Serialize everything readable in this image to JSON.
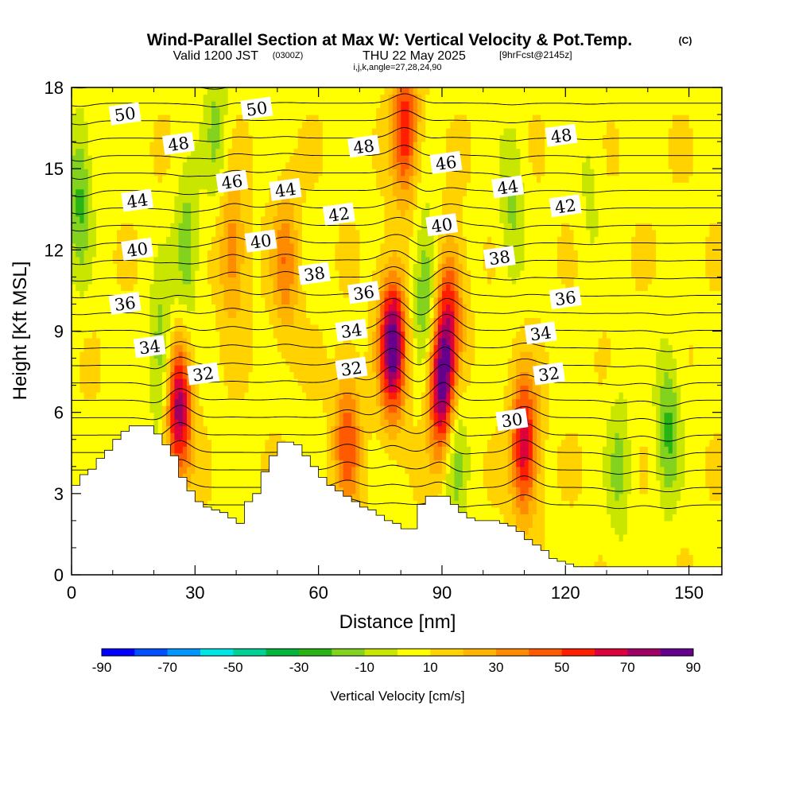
{
  "chart_data": {
    "type": "heatmap",
    "title": "Wind-Parallel Section at Max W: Vertical Velocity & Pot.Temp.",
    "title_mark": "(C)",
    "subtitle_main": "Valid 1200 JST",
    "subtitle_utc": "(0300Z)",
    "subtitle_date": "THU 22 May 2025",
    "subtitle_run": "[9hrFcst@2145z]",
    "subtitle_ijk": "i,j,k,angle=27,28,24,90",
    "xlabel": "Distance [nm]",
    "ylabel": "Height [Kft MSL]",
    "xlim": [
      0,
      158
    ],
    "ylim": [
      0,
      18
    ],
    "x_ticks": [
      "0",
      "30",
      "60",
      "90",
      "120",
      "150"
    ],
    "x_tick_values": [
      0,
      30,
      60,
      90,
      120,
      150
    ],
    "y_ticks": [
      "0",
      "3",
      "6",
      "9",
      "12",
      "15",
      "18"
    ],
    "y_tick_values": [
      0,
      3,
      6,
      9,
      12,
      15,
      18
    ],
    "colorbar": {
      "label": "Vertical Velocity [cm/s]",
      "range": [
        -90,
        90
      ],
      "step": 10,
      "tick_labels": [
        "-90",
        "-70",
        "-50",
        "-30",
        "-10",
        "10",
        "30",
        "50",
        "70",
        "90"
      ],
      "tick_values": [
        -90,
        -70,
        -50,
        -30,
        -10,
        10,
        30,
        50,
        70,
        90
      ],
      "colors": [
        "#0000ff",
        "#0050ff",
        "#0096ff",
        "#00e6e6",
        "#00d296",
        "#00b43c",
        "#28b414",
        "#82d21e",
        "#c8e600",
        "#ffff00",
        "#ffd200",
        "#ffb400",
        "#ff8c00",
        "#ff5a00",
        "#ff1e00",
        "#dc003c",
        "#a00064",
        "#64008c"
      ]
    },
    "terrain_profile": {
      "x": [
        0,
        2,
        4,
        6,
        8,
        10,
        12,
        14,
        16,
        18,
        20,
        22,
        24,
        26,
        28,
        30,
        32,
        34,
        36,
        38,
        40,
        42,
        44,
        46,
        48,
        50,
        52,
        54,
        56,
        58,
        60,
        62,
        64,
        66,
        68,
        70,
        72,
        74,
        76,
        78,
        80,
        82,
        84,
        86,
        88,
        90,
        92,
        94,
        96,
        98,
        100,
        102,
        104,
        106,
        108,
        110,
        112,
        114,
        116,
        118,
        120,
        122,
        124,
        126,
        128,
        130,
        140,
        150,
        158
      ],
      "height": [
        3.3,
        3.7,
        3.9,
        4.3,
        4.6,
        5.0,
        5.3,
        5.5,
        5.5,
        5.5,
        5.2,
        4.8,
        4.4,
        3.6,
        3.1,
        2.7,
        2.5,
        2.4,
        2.3,
        2.1,
        1.9,
        2.7,
        3.0,
        3.8,
        4.4,
        4.9,
        4.9,
        4.8,
        4.4,
        4.0,
        3.6,
        3.3,
        3.1,
        2.9,
        2.7,
        2.5,
        2.4,
        2.2,
        2.0,
        1.9,
        1.7,
        1.7,
        2.6,
        2.9,
        2.9,
        2.9,
        2.6,
        2.3,
        2.1,
        2.0,
        2.0,
        2.0,
        1.9,
        1.8,
        1.6,
        1.3,
        1.1,
        0.9,
        0.6,
        0.5,
        0.4,
        0.3,
        0.3,
        0.3,
        0.3,
        0.3,
        0.3,
        0.3,
        0.3
      ]
    },
    "updraft_cores": [
      {
        "x": 26,
        "z": 6.2,
        "w": 70
      },
      {
        "x": 67,
        "z": 5.0,
        "w": 40
      },
      {
        "x": 78,
        "z": 8.5,
        "w": 80
      },
      {
        "x": 90,
        "z": 7.0,
        "w": 80
      },
      {
        "x": 92,
        "z": 10.0,
        "w": 40
      },
      {
        "x": 110,
        "z": 4.8,
        "w": 60
      },
      {
        "x": 52,
        "z": 11.5,
        "w": 30
      },
      {
        "x": 81,
        "z": 16.5,
        "w": 50
      },
      {
        "x": 39,
        "z": 12.0,
        "w": 30
      }
    ],
    "downdraft_cores": [
      {
        "x": 2,
        "z": 14,
        "w": -30
      },
      {
        "x": 22,
        "z": 8.0,
        "w": -30
      },
      {
        "x": 28,
        "z": 12.0,
        "w": -25
      },
      {
        "x": 35,
        "z": 16.5,
        "w": -20
      },
      {
        "x": 86,
        "z": 10.5,
        "w": -30
      },
      {
        "x": 93,
        "z": 4.5,
        "w": -25
      },
      {
        "x": 107,
        "z": 13.5,
        "w": -20
      },
      {
        "x": 133,
        "z": 4.0,
        "w": -20
      },
      {
        "x": 145,
        "z": 5.5,
        "w": -30
      },
      {
        "x": 126,
        "z": 14.0,
        "w": -10
      }
    ],
    "isentrope_labels": [
      {
        "text": "50",
        "x": 13,
        "z": 17.0
      },
      {
        "text": "50",
        "x": 45,
        "z": 17.2
      },
      {
        "text": "48",
        "x": 26,
        "z": 15.9
      },
      {
        "text": "48",
        "x": 71,
        "z": 15.8
      },
      {
        "text": "48",
        "x": 119,
        "z": 16.2
      },
      {
        "text": "46",
        "x": 39,
        "z": 14.5
      },
      {
        "text": "46",
        "x": 91,
        "z": 15.2
      },
      {
        "text": "44",
        "x": 16,
        "z": 13.8
      },
      {
        "text": "44",
        "x": 52,
        "z": 14.2
      },
      {
        "text": "44",
        "x": 106,
        "z": 14.3
      },
      {
        "text": "42",
        "x": 65,
        "z": 13.3
      },
      {
        "text": "42",
        "x": 120,
        "z": 13.6
      },
      {
        "text": "40",
        "x": 16,
        "z": 12.0
      },
      {
        "text": "40",
        "x": 46,
        "z": 12.3
      },
      {
        "text": "40",
        "x": 90,
        "z": 12.9
      },
      {
        "text": "38",
        "x": 59,
        "z": 11.1
      },
      {
        "text": "38",
        "x": 104,
        "z": 11.7
      },
      {
        "text": "36",
        "x": 13,
        "z": 10.0
      },
      {
        "text": "36",
        "x": 71,
        "z": 10.4
      },
      {
        "text": "36",
        "x": 120,
        "z": 10.2
      },
      {
        "text": "34",
        "x": 19,
        "z": 8.4
      },
      {
        "text": "34",
        "x": 68,
        "z": 9.0
      },
      {
        "text": "34",
        "x": 114,
        "z": 8.9
      },
      {
        "text": "32",
        "x": 32,
        "z": 7.4
      },
      {
        "text": "32",
        "x": 68,
        "z": 7.6
      },
      {
        "text": "32",
        "x": 116,
        "z": 7.4
      },
      {
        "text": "30",
        "x": 107,
        "z": 5.7
      }
    ]
  }
}
